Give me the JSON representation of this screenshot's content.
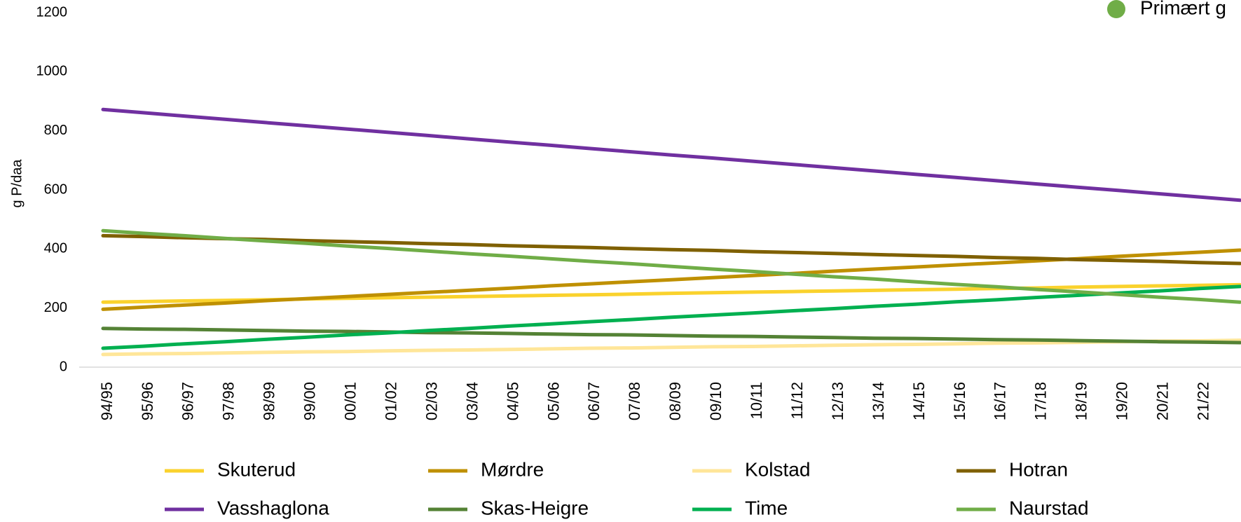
{
  "chart_data": {
    "type": "line",
    "y_label": "g P/daa",
    "categories": [
      "94/95",
      "95/96",
      "96/97",
      "97/98",
      "98/99",
      "99/00",
      "00/01",
      "01/02",
      "02/03",
      "03/04",
      "04/05",
      "05/06",
      "06/07",
      "07/08",
      "08/09",
      "09/10",
      "10/11",
      "11/12",
      "12/13",
      "13/14",
      "14/15",
      "15/16",
      "16/17",
      "17/18",
      "18/19",
      "19/20",
      "20/21",
      "21/22",
      null
    ],
    "ylim": [
      0,
      1200
    ],
    "yticks": [
      0,
      200,
      400,
      600,
      800,
      1000,
      1200
    ],
    "grid": false,
    "legend_position": "bottom",
    "top_legend": {
      "label": "Primært g",
      "color": "#70ad47"
    },
    "series": [
      {
        "name": "Skuterud",
        "color": "#fad22d",
        "values": [
          220,
          222,
          224,
          226,
          228,
          231,
          233,
          235,
          237,
          239,
          241,
          243,
          245,
          247,
          250,
          252,
          254,
          256,
          258,
          260,
          262,
          264,
          266,
          268,
          271,
          273,
          275,
          277,
          279
        ]
      },
      {
        "name": "Mørdre",
        "color": "#bf9000",
        "values": [
          196,
          203,
          210,
          217,
          225,
          232,
          239,
          246,
          253,
          260,
          267,
          275,
          282,
          289,
          296,
          303,
          310,
          317,
          325,
          332,
          339,
          346,
          353,
          360,
          367,
          375,
          382,
          389,
          396
        ]
      },
      {
        "name": "Kolstad",
        "color": "#ffe699",
        "values": [
          43,
          45,
          46,
          48,
          50,
          52,
          53,
          55,
          57,
          58,
          60,
          62,
          64,
          65,
          67,
          69,
          70,
          72,
          74,
          76,
          77,
          79,
          81,
          82,
          84,
          86,
          88,
          89,
          91
        ]
      },
      {
        "name": "Hotran",
        "color": "#7f6000",
        "values": [
          445,
          442,
          438,
          435,
          432,
          428,
          425,
          422,
          418,
          415,
          411,
          408,
          405,
          401,
          398,
          395,
          391,
          388,
          385,
          381,
          378,
          375,
          371,
          368,
          364,
          361,
          358,
          354,
          351
        ]
      },
      {
        "name": "Vasshaglona",
        "color": "#7030a0",
        "values": [
          872,
          861,
          850,
          839,
          828,
          817,
          806,
          795,
          784,
          773,
          762,
          751,
          740,
          729,
          718,
          708,
          697,
          686,
          675,
          664,
          653,
          642,
          631,
          620,
          609,
          598,
          587,
          576,
          565
        ]
      },
      {
        "name": "Skas-Heigre",
        "color": "#548235",
        "values": [
          131,
          129,
          128,
          126,
          124,
          122,
          121,
          119,
          117,
          116,
          114,
          112,
          110,
          109,
          107,
          105,
          104,
          102,
          100,
          98,
          97,
          95,
          93,
          92,
          90,
          88,
          86,
          85,
          83
        ]
      },
      {
        "name": "Time",
        "color": "#00b050",
        "values": [
          64,
          71,
          79,
          86,
          94,
          101,
          109,
          116,
          124,
          131,
          139,
          146,
          154,
          161,
          169,
          176,
          183,
          191,
          198,
          206,
          213,
          221,
          228,
          236,
          243,
          251,
          258,
          266,
          273
        ]
      },
      {
        "name": "Naurstad",
        "color": "#70ad47",
        "values": [
          462,
          453,
          445,
          436,
          427,
          419,
          410,
          402,
          393,
          384,
          376,
          367,
          358,
          350,
          341,
          332,
          324,
          315,
          306,
          298,
          289,
          280,
          272,
          263,
          255,
          246,
          237,
          229,
          220
        ]
      }
    ]
  }
}
